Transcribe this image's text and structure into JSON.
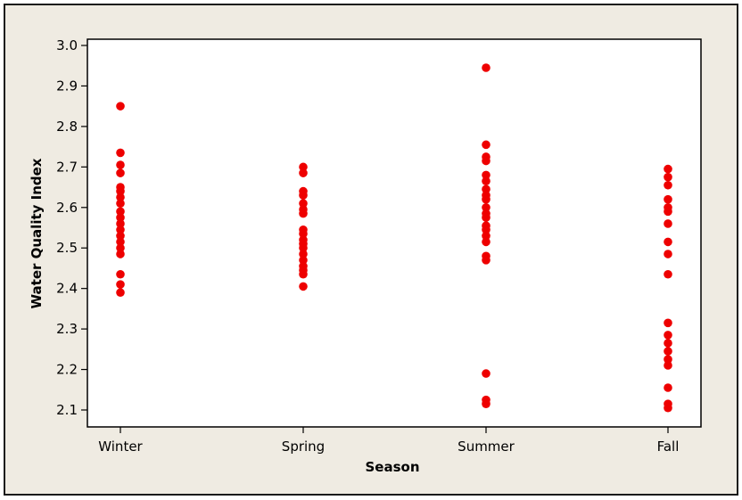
{
  "chart_data": {
    "type": "scatter",
    "title": "",
    "xlabel": "Season",
    "ylabel": "Water Quality Index",
    "categories": [
      "Winter",
      "Spring",
      "Summer",
      "Fall"
    ],
    "ylim": [
      2.06,
      3.02
    ],
    "yticks": [
      "2.1",
      "2.2",
      "2.3",
      "2.4",
      "2.5",
      "2.6",
      "2.7",
      "2.8",
      "2.9",
      "3.0"
    ],
    "grid": false,
    "legend": "none",
    "marker_color": "#ee0000",
    "series": [
      {
        "category": "Winter",
        "values": [
          2.85,
          2.735,
          2.705,
          2.685,
          2.65,
          2.64,
          2.625,
          2.61,
          2.59,
          2.575,
          2.56,
          2.545,
          2.53,
          2.515,
          2.5,
          2.485,
          2.435,
          2.41,
          2.39
        ]
      },
      {
        "category": "Spring",
        "values": [
          2.7,
          2.685,
          2.64,
          2.63,
          2.61,
          2.595,
          2.585,
          2.545,
          2.535,
          2.52,
          2.51,
          2.5,
          2.485,
          2.47,
          2.455,
          2.445,
          2.435,
          2.405
        ]
      },
      {
        "category": "Summer",
        "values": [
          2.945,
          2.755,
          2.725,
          2.715,
          2.68,
          2.665,
          2.645,
          2.63,
          2.62,
          2.6,
          2.585,
          2.575,
          2.555,
          2.545,
          2.53,
          2.515,
          2.48,
          2.47,
          2.19,
          2.125,
          2.115
        ]
      },
      {
        "category": "Fall",
        "values": [
          2.695,
          2.675,
          2.655,
          2.62,
          2.6,
          2.59,
          2.56,
          2.515,
          2.485,
          2.435,
          2.315,
          2.285,
          2.265,
          2.245,
          2.225,
          2.21,
          2.155,
          2.115,
          2.105
        ]
      }
    ]
  }
}
